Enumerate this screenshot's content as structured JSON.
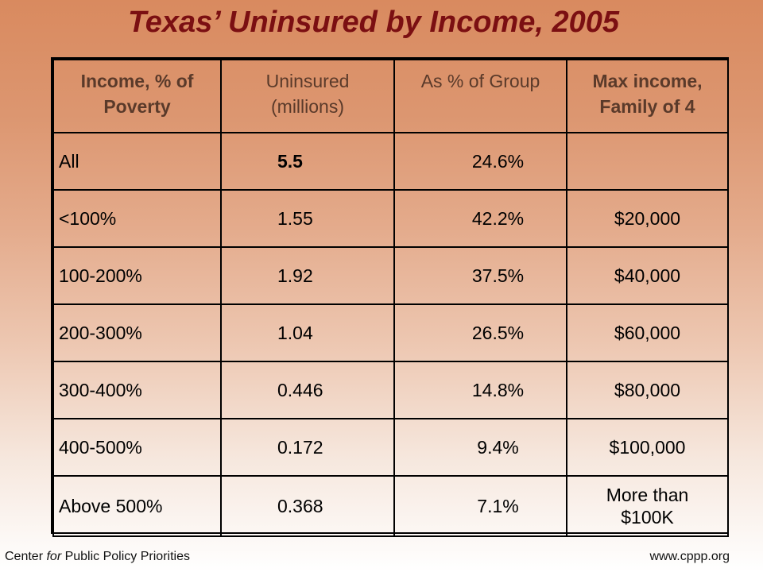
{
  "title": "Texas’ Uninsured by Income, 2005",
  "table": {
    "headers": {
      "income_line1": "Income, % of",
      "income_line2": "Poverty",
      "uninsured_line1": "Uninsured",
      "uninsured_line2": "(millions)",
      "pct": "As % of Group",
      "max_line1": "Max income,",
      "max_line2": "Family of 4"
    },
    "rows": [
      {
        "income": "All",
        "uninsured": "5.5",
        "pct": "24.6%",
        "max": ""
      },
      {
        "income": "<100%",
        "uninsured": "1.55",
        "pct": "42.2%",
        "max": "$20,000"
      },
      {
        "income": "100-200%",
        "uninsured": "1.92",
        "pct": "37.5%",
        "max": "$40,000"
      },
      {
        "income": "200-300%",
        "uninsured": "1.04",
        "pct": "26.5%",
        "max": "$60,000"
      },
      {
        "income": "300-400%",
        "uninsured": "0.446",
        "pct": "14.8%",
        "max": "$80,000"
      },
      {
        "income": "400-500%",
        "uninsured": "0.172",
        "pct": "9.4%",
        "max": "$100,000"
      },
      {
        "income": "Above 500%",
        "uninsured": "0.368",
        "pct": "7.1%",
        "max_line1": "More than",
        "max_line2": "$100K"
      }
    ]
  },
  "footer": {
    "org_prefix": "Center ",
    "org_italic": "for",
    "org_suffix": " Public Policy Priorities",
    "website": "www.cppp.org"
  },
  "colors": {
    "title": "#7b0f12",
    "background_top": "#d98a5f",
    "background_bottom": "#ffffff"
  }
}
